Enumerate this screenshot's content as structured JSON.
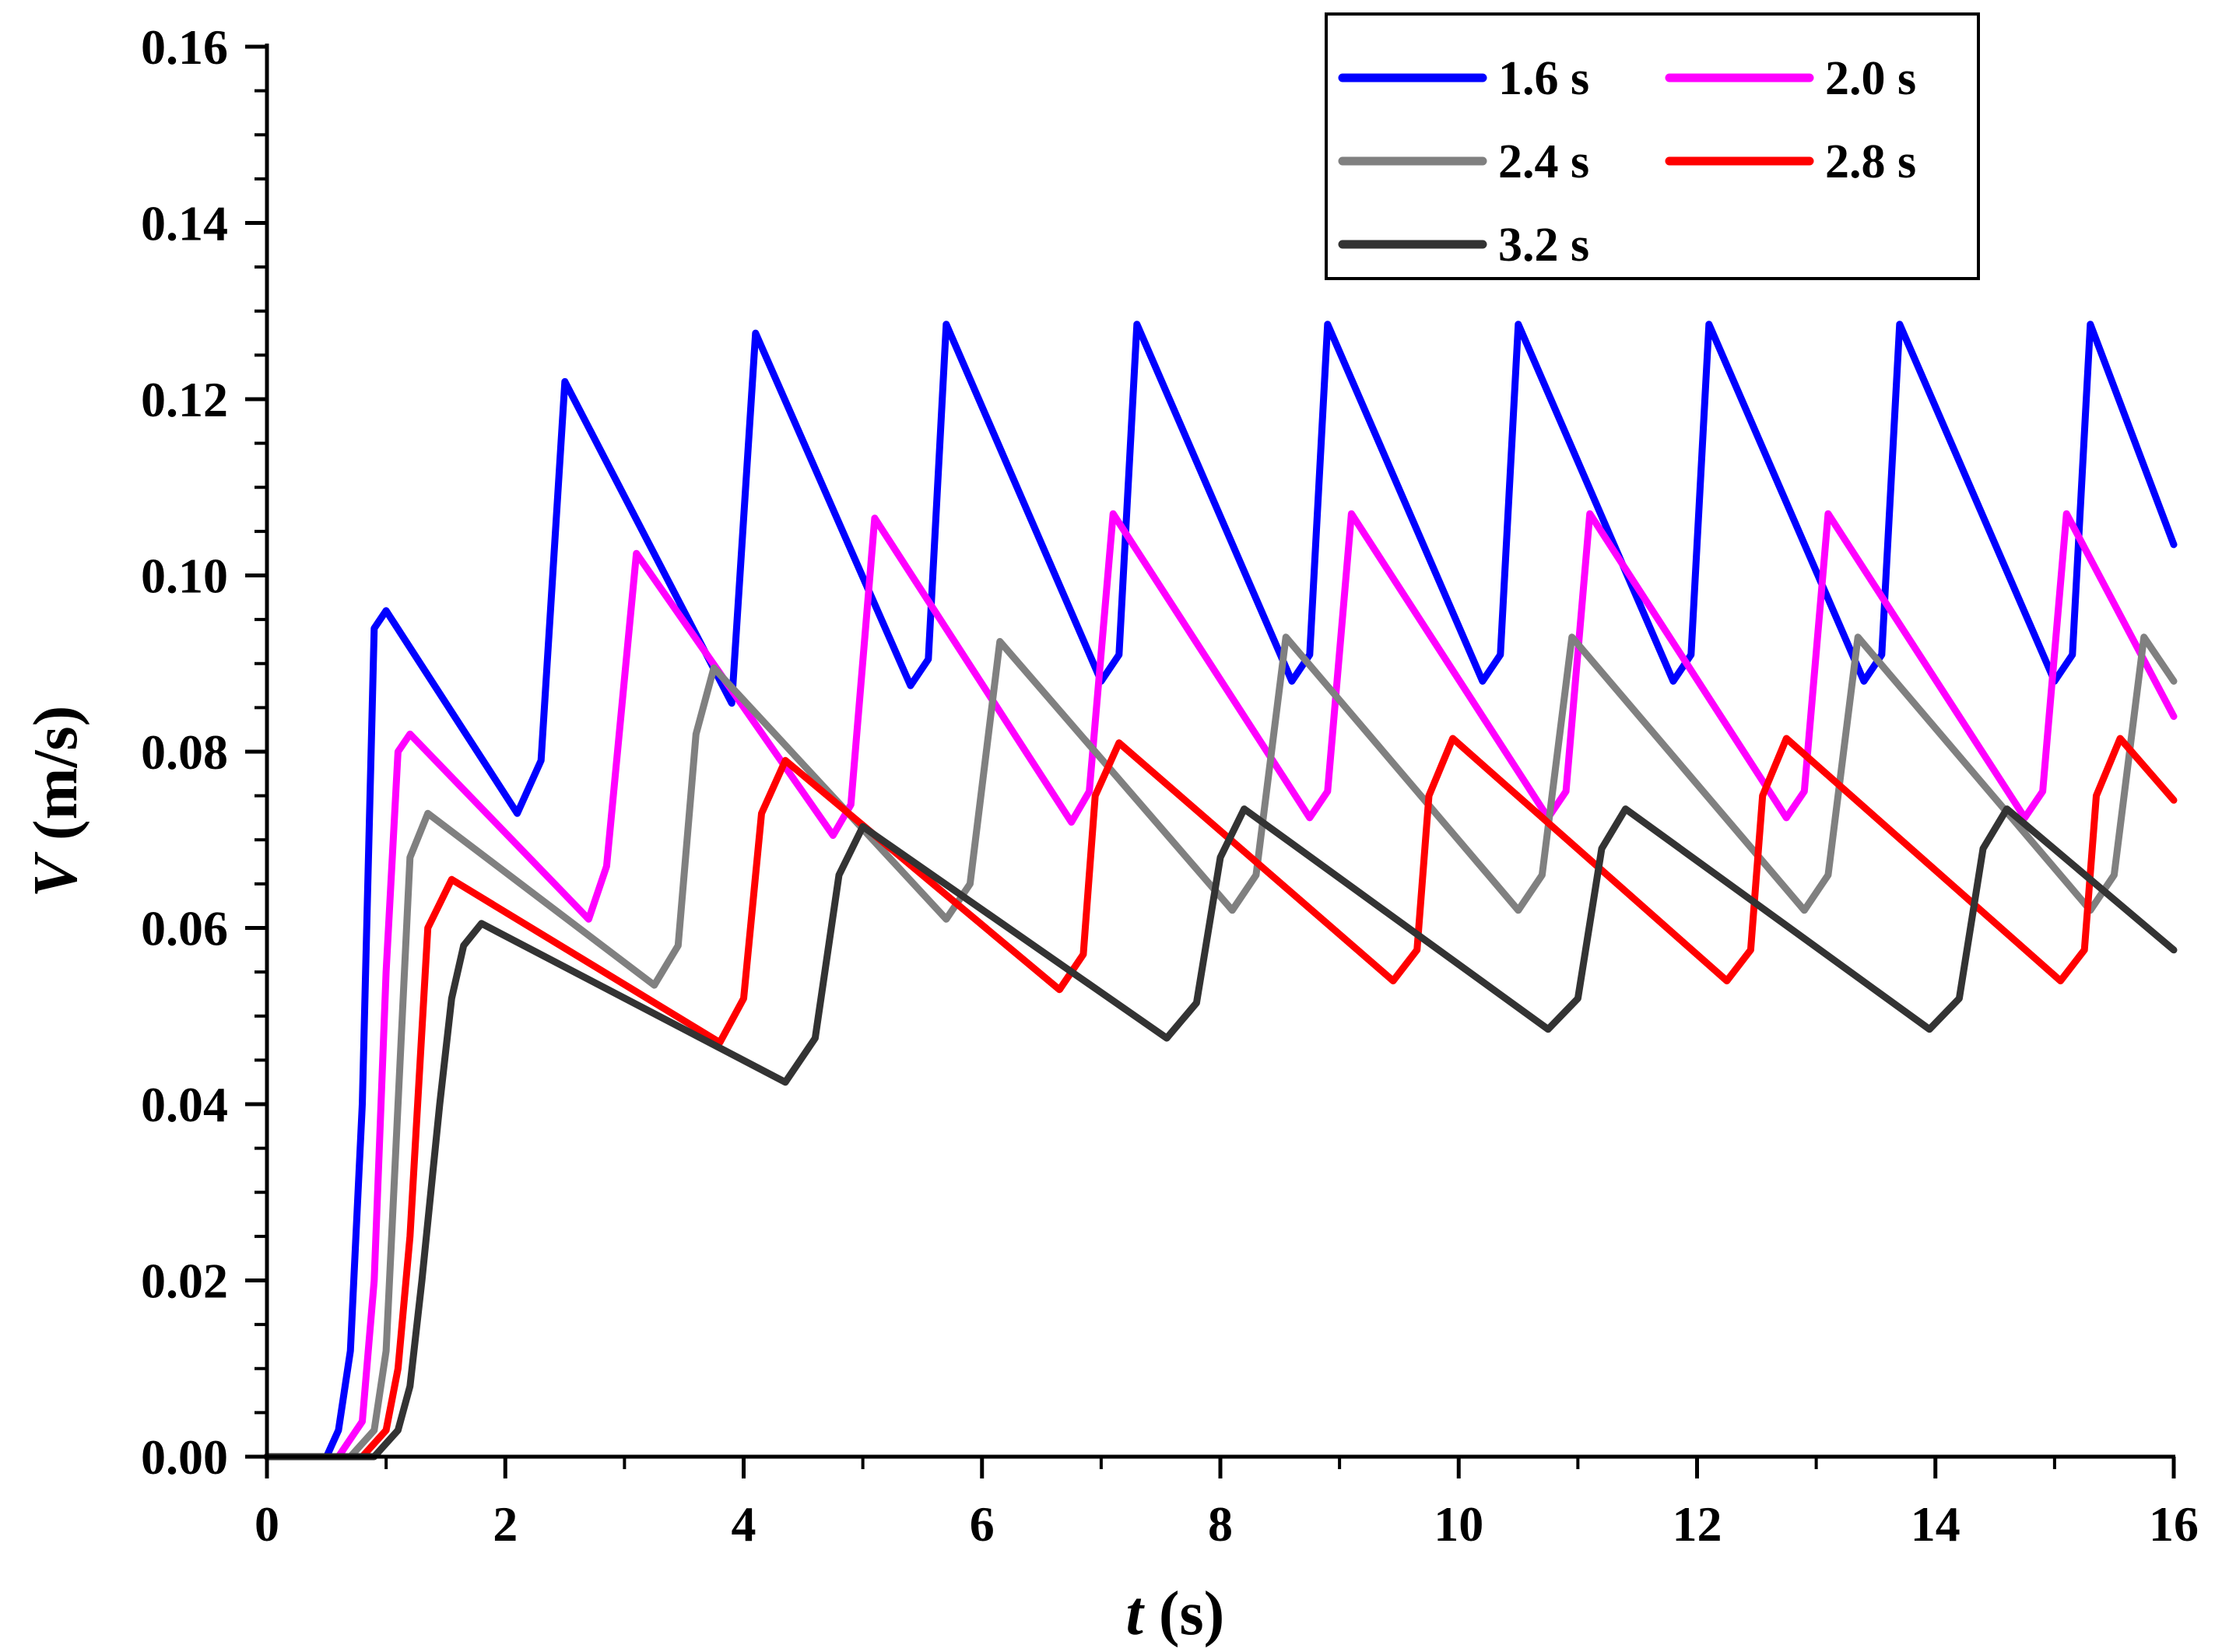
{
  "chart_data": {
    "type": "line",
    "title": "",
    "xlabel": {
      "symbol": "t",
      "unit": " (s)"
    },
    "ylabel": {
      "symbol": "V",
      "unit": " (m/s)"
    },
    "xlim": [
      0,
      16
    ],
    "ylim": [
      0,
      0.16
    ],
    "xticks": [
      0,
      2,
      4,
      6,
      8,
      10,
      12,
      14,
      16
    ],
    "xtick_labels": [
      "0",
      "2",
      "4",
      "6",
      "8",
      "10",
      "12",
      "14",
      "16"
    ],
    "yticks": [
      0,
      0.02,
      0.04,
      0.06,
      0.08,
      0.1,
      0.12,
      0.14,
      0.16
    ],
    "ytick_labels": [
      "0.00",
      "0.02",
      "0.04",
      "0.06",
      "0.08",
      "0.10",
      "0.12",
      "0.14",
      "0.16"
    ],
    "grid": false,
    "legend_position": "top-right",
    "series": [
      {
        "name": "1.6 s",
        "color": "#0000ff",
        "x": [
          0,
          0.5,
          0.6,
          0.7,
          0.8,
          0.9,
          1.0,
          2.1,
          2.3,
          2.5,
          3.9,
          4.1,
          5.4,
          5.55,
          5.7,
          7.0,
          7.15,
          7.3,
          8.6,
          8.75,
          8.9,
          10.2,
          10.35,
          10.5,
          11.8,
          11.95,
          12.1,
          13.4,
          13.55,
          13.7,
          15.0,
          15.15,
          15.3,
          16.0
        ],
        "values": [
          0,
          0,
          0.003,
          0.012,
          0.04,
          0.094,
          0.096,
          0.073,
          0.079,
          0.122,
          0.0855,
          0.1275,
          0.0875,
          0.0905,
          0.1285,
          0.088,
          0.091,
          0.1285,
          0.088,
          0.091,
          0.1285,
          0.088,
          0.091,
          0.1285,
          0.088,
          0.091,
          0.1285,
          0.088,
          0.091,
          0.1285,
          0.088,
          0.091,
          0.1285,
          0.1035
        ]
      },
      {
        "name": "2.0 s",
        "color": "#ff00ff",
        "x": [
          0,
          0.6,
          0.8,
          0.9,
          1.0,
          1.1,
          1.2,
          2.7,
          2.85,
          3.1,
          4.75,
          4.9,
          5.1,
          6.75,
          6.9,
          7.1,
          8.75,
          8.9,
          9.1,
          10.75,
          10.9,
          11.1,
          12.75,
          12.9,
          13.1,
          14.75,
          14.9,
          15.1,
          16.0
        ],
        "values": [
          0,
          0,
          0.004,
          0.02,
          0.055,
          0.08,
          0.082,
          0.061,
          0.067,
          0.1025,
          0.0705,
          0.074,
          0.1065,
          0.072,
          0.0755,
          0.107,
          0.0725,
          0.0755,
          0.107,
          0.0725,
          0.0755,
          0.107,
          0.0725,
          0.0755,
          0.107,
          0.0725,
          0.0755,
          0.107,
          0.084
        ]
      },
      {
        "name": "2.4 s",
        "color": "#808080",
        "x": [
          0,
          0.7,
          0.9,
          1.0,
          1.1,
          1.2,
          1.35,
          3.25,
          3.45,
          3.6,
          3.75,
          5.7,
          5.9,
          6.15,
          8.1,
          8.3,
          8.55,
          10.5,
          10.7,
          10.95,
          12.9,
          13.1,
          13.35,
          15.3,
          15.5,
          15.75,
          16.0
        ],
        "values": [
          0,
          0,
          0.003,
          0.012,
          0.04,
          0.068,
          0.073,
          0.0535,
          0.058,
          0.082,
          0.0895,
          0.061,
          0.065,
          0.0925,
          0.062,
          0.066,
          0.093,
          0.062,
          0.066,
          0.093,
          0.062,
          0.066,
          0.093,
          0.062,
          0.066,
          0.093,
          0.088
        ]
      },
      {
        "name": "2.8 s",
        "color": "#ff0000",
        "x": [
          0,
          0.8,
          1.0,
          1.1,
          1.2,
          1.35,
          1.55,
          3.8,
          4.0,
          4.15,
          4.35,
          6.65,
          6.85,
          6.95,
          7.15,
          9.45,
          9.65,
          9.75,
          9.95,
          12.25,
          12.45,
          12.55,
          12.75,
          15.05,
          15.25,
          15.35,
          15.55,
          16.0
        ],
        "values": [
          0,
          0,
          0.003,
          0.01,
          0.025,
          0.06,
          0.0655,
          0.047,
          0.052,
          0.073,
          0.079,
          0.053,
          0.057,
          0.075,
          0.081,
          0.054,
          0.0575,
          0.075,
          0.0815,
          0.054,
          0.0575,
          0.075,
          0.0815,
          0.054,
          0.0575,
          0.075,
          0.0815,
          0.0745
        ]
      },
      {
        "name": "3.2 s",
        "color": "#333333",
        "x": [
          0,
          0.9,
          1.1,
          1.2,
          1.3,
          1.45,
          1.55,
          1.65,
          1.8,
          4.35,
          4.6,
          4.8,
          5.0,
          7.55,
          7.8,
          8.0,
          8.2,
          10.75,
          11.0,
          11.2,
          11.4,
          13.95,
          14.2,
          14.4,
          14.6,
          16.0
        ],
        "values": [
          0,
          0,
          0.003,
          0.008,
          0.02,
          0.04,
          0.052,
          0.058,
          0.0605,
          0.0425,
          0.0475,
          0.066,
          0.0715,
          0.0475,
          0.0515,
          0.068,
          0.0735,
          0.0485,
          0.052,
          0.069,
          0.0735,
          0.0485,
          0.052,
          0.069,
          0.0735,
          0.0575
        ]
      }
    ]
  }
}
